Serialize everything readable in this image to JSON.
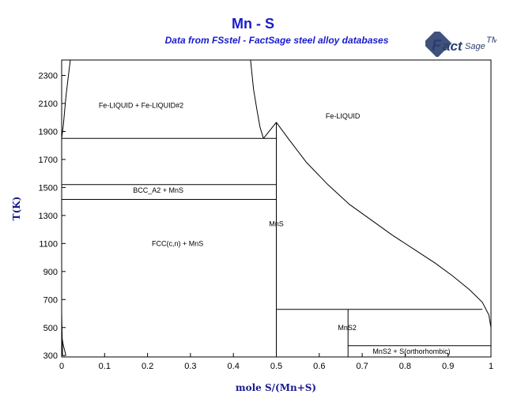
{
  "header": {
    "title": "Mn - S",
    "subtitle": "Data from FSstel - FactSage steel alloy databases",
    "logo_text": "FactSage"
  },
  "chart_data": {
    "type": "line",
    "xlabel": "mole S/(Mn+S)",
    "ylabel": "T(K)",
    "xlim": [
      0,
      1
    ],
    "ylim": [
      290,
      2410
    ],
    "xticks": [
      "0",
      "0.1",
      "0.2",
      "0.3",
      "0.4",
      "0.5",
      "0.6",
      "0.7",
      "0.8",
      "0.9",
      "1"
    ],
    "xtick_values": [
      0,
      0.1,
      0.2,
      0.3,
      0.4,
      0.5,
      0.6,
      0.7,
      0.8,
      0.9,
      1
    ],
    "yticks": [
      "300",
      "500",
      "700",
      "900",
      "1100",
      "1300",
      "1500",
      "1700",
      "1900",
      "2100",
      "2300"
    ],
    "ytick_values": [
      300,
      500,
      700,
      900,
      1100,
      1300,
      1500,
      1700,
      1900,
      2100,
      2300
    ],
    "grid": false,
    "series": [
      {
        "points": [
          [
            0.002,
            300
          ],
          [
            0.0,
            600
          ],
          [
            0.0,
            1850
          ],
          [
            0.004,
            1950
          ],
          [
            0.01,
            2150
          ],
          [
            0.02,
            2410
          ]
        ]
      },
      {
        "points": [
          [
            0.0,
            440
          ],
          [
            0.004,
            370
          ],
          [
            0.01,
            300
          ]
        ]
      },
      {
        "points": [
          [
            0.44,
            2410
          ],
          [
            0.447,
            2200
          ],
          [
            0.455,
            2050
          ],
          [
            0.462,
            1930
          ],
          [
            0.47,
            1850
          ]
        ]
      },
      {
        "points": [
          [
            0.47,
            1850
          ],
          [
            0.5,
            1965
          ]
        ]
      },
      {
        "points": [
          [
            0.5,
            1965
          ],
          [
            0.53,
            1840
          ],
          [
            0.57,
            1680
          ],
          [
            0.62,
            1520
          ],
          [
            0.67,
            1380
          ],
          [
            0.72,
            1270
          ],
          [
            0.77,
            1160
          ],
          [
            0.82,
            1060
          ],
          [
            0.87,
            960
          ],
          [
            0.91,
            870
          ],
          [
            0.95,
            770
          ],
          [
            0.98,
            680
          ],
          [
            0.995,
            590
          ],
          [
            1.0,
            500
          ]
        ]
      },
      {
        "points": [
          [
            0.0,
            1850
          ],
          [
            0.5,
            1850
          ]
        ]
      },
      {
        "points": [
          [
            0.0,
            1520
          ],
          [
            0.5,
            1520
          ]
        ]
      },
      {
        "points": [
          [
            0.0,
            1415
          ],
          [
            0.5,
            1415
          ]
        ]
      },
      {
        "points": [
          [
            0.5,
            1965
          ],
          [
            0.5,
            290
          ]
        ]
      },
      {
        "points": [
          [
            0.5,
            630
          ],
          [
            0.98,
            630
          ]
        ]
      },
      {
        "points": [
          [
            0.667,
            630
          ],
          [
            0.667,
            290
          ]
        ]
      },
      {
        "points": [
          [
            0.667,
            370
          ],
          [
            1.0,
            370
          ]
        ]
      }
    ],
    "annotations": [
      {
        "text": "Fe-LIQUID + Fe-LIQUID#2",
        "x": 0.185,
        "y": 2085
      },
      {
        "text": "Fe-LIQUID",
        "x": 0.655,
        "y": 2010
      },
      {
        "text": "BCC_A2 + MnS",
        "x": 0.225,
        "y": 1480
      },
      {
        "text": "FCC(c,n) + MnS",
        "x": 0.27,
        "y": 1100
      },
      {
        "text": "MnS",
        "x": 0.5,
        "y": 1240
      },
      {
        "text": "MnS2",
        "x": 0.665,
        "y": 500
      },
      {
        "text": "MnS2 + S(orthorhombic)",
        "x": 0.815,
        "y": 330
      }
    ]
  }
}
